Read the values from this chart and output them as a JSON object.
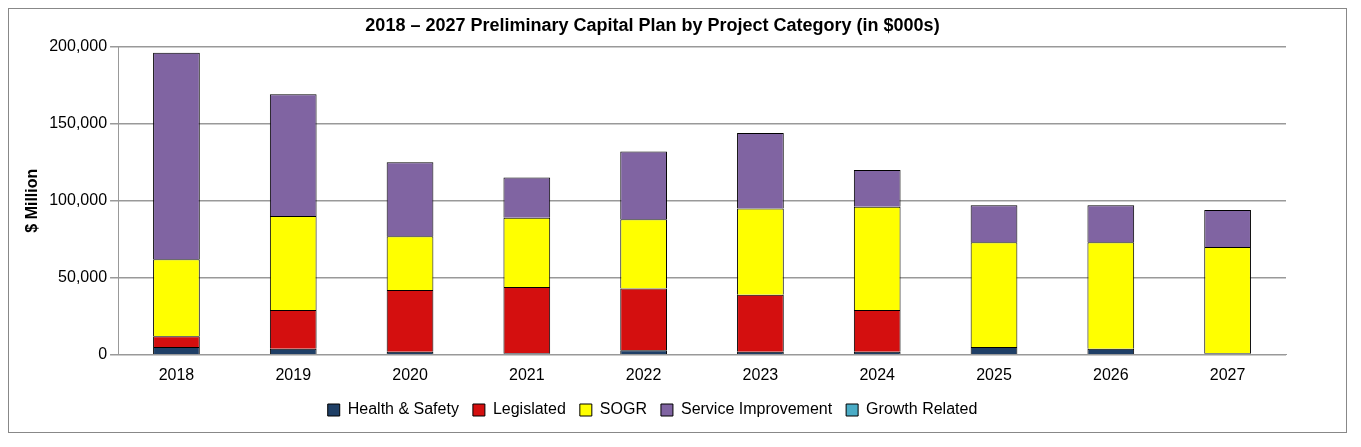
{
  "chart_data": {
    "type": "bar",
    "title": "2018 – 2027 Preliminary Capital Plan by Project Category (in $000s)",
    "ylabel": "$ Million",
    "categories": [
      "2018",
      "2019",
      "2020",
      "2021",
      "2022",
      "2023",
      "2024",
      "2025",
      "2026",
      "2027"
    ],
    "stacked": true,
    "ylim": [
      0,
      200000
    ],
    "yticks": [
      {
        "value": 0,
        "label": "0"
      },
      {
        "value": 50000,
        "label": "50,000"
      },
      {
        "value": 100000,
        "label": "100,000"
      },
      {
        "value": 150000,
        "label": "150,000"
      },
      {
        "value": 200000,
        "label": "200,000"
      }
    ],
    "grid": "y",
    "legend": "bottom",
    "series": [
      {
        "name": "Health & Safety",
        "color": "#1f3f66",
        "values": [
          5000,
          4000,
          2000,
          1000,
          3000,
          2000,
          2000,
          5000,
          4000,
          1000
        ]
      },
      {
        "name": "Legislated",
        "color": "#d40f0f",
        "values": [
          7000,
          25000,
          40000,
          43000,
          40000,
          37000,
          27000,
          0,
          0,
          0
        ]
      },
      {
        "name": "SOGR",
        "color": "#ffff00",
        "values": [
          50000,
          61000,
          35000,
          45000,
          45000,
          56000,
          67000,
          68000,
          69000,
          69000
        ]
      },
      {
        "name": "Service Improvement",
        "color": "#8064a2",
        "values": [
          134000,
          79000,
          48000,
          26000,
          44000,
          49000,
          24000,
          24000,
          24000,
          24000
        ]
      },
      {
        "name": "Growth Related",
        "color": "#4bacc6",
        "values": [
          0,
          0,
          0,
          0,
          0,
          0,
          0,
          0,
          0,
          0
        ]
      }
    ]
  }
}
